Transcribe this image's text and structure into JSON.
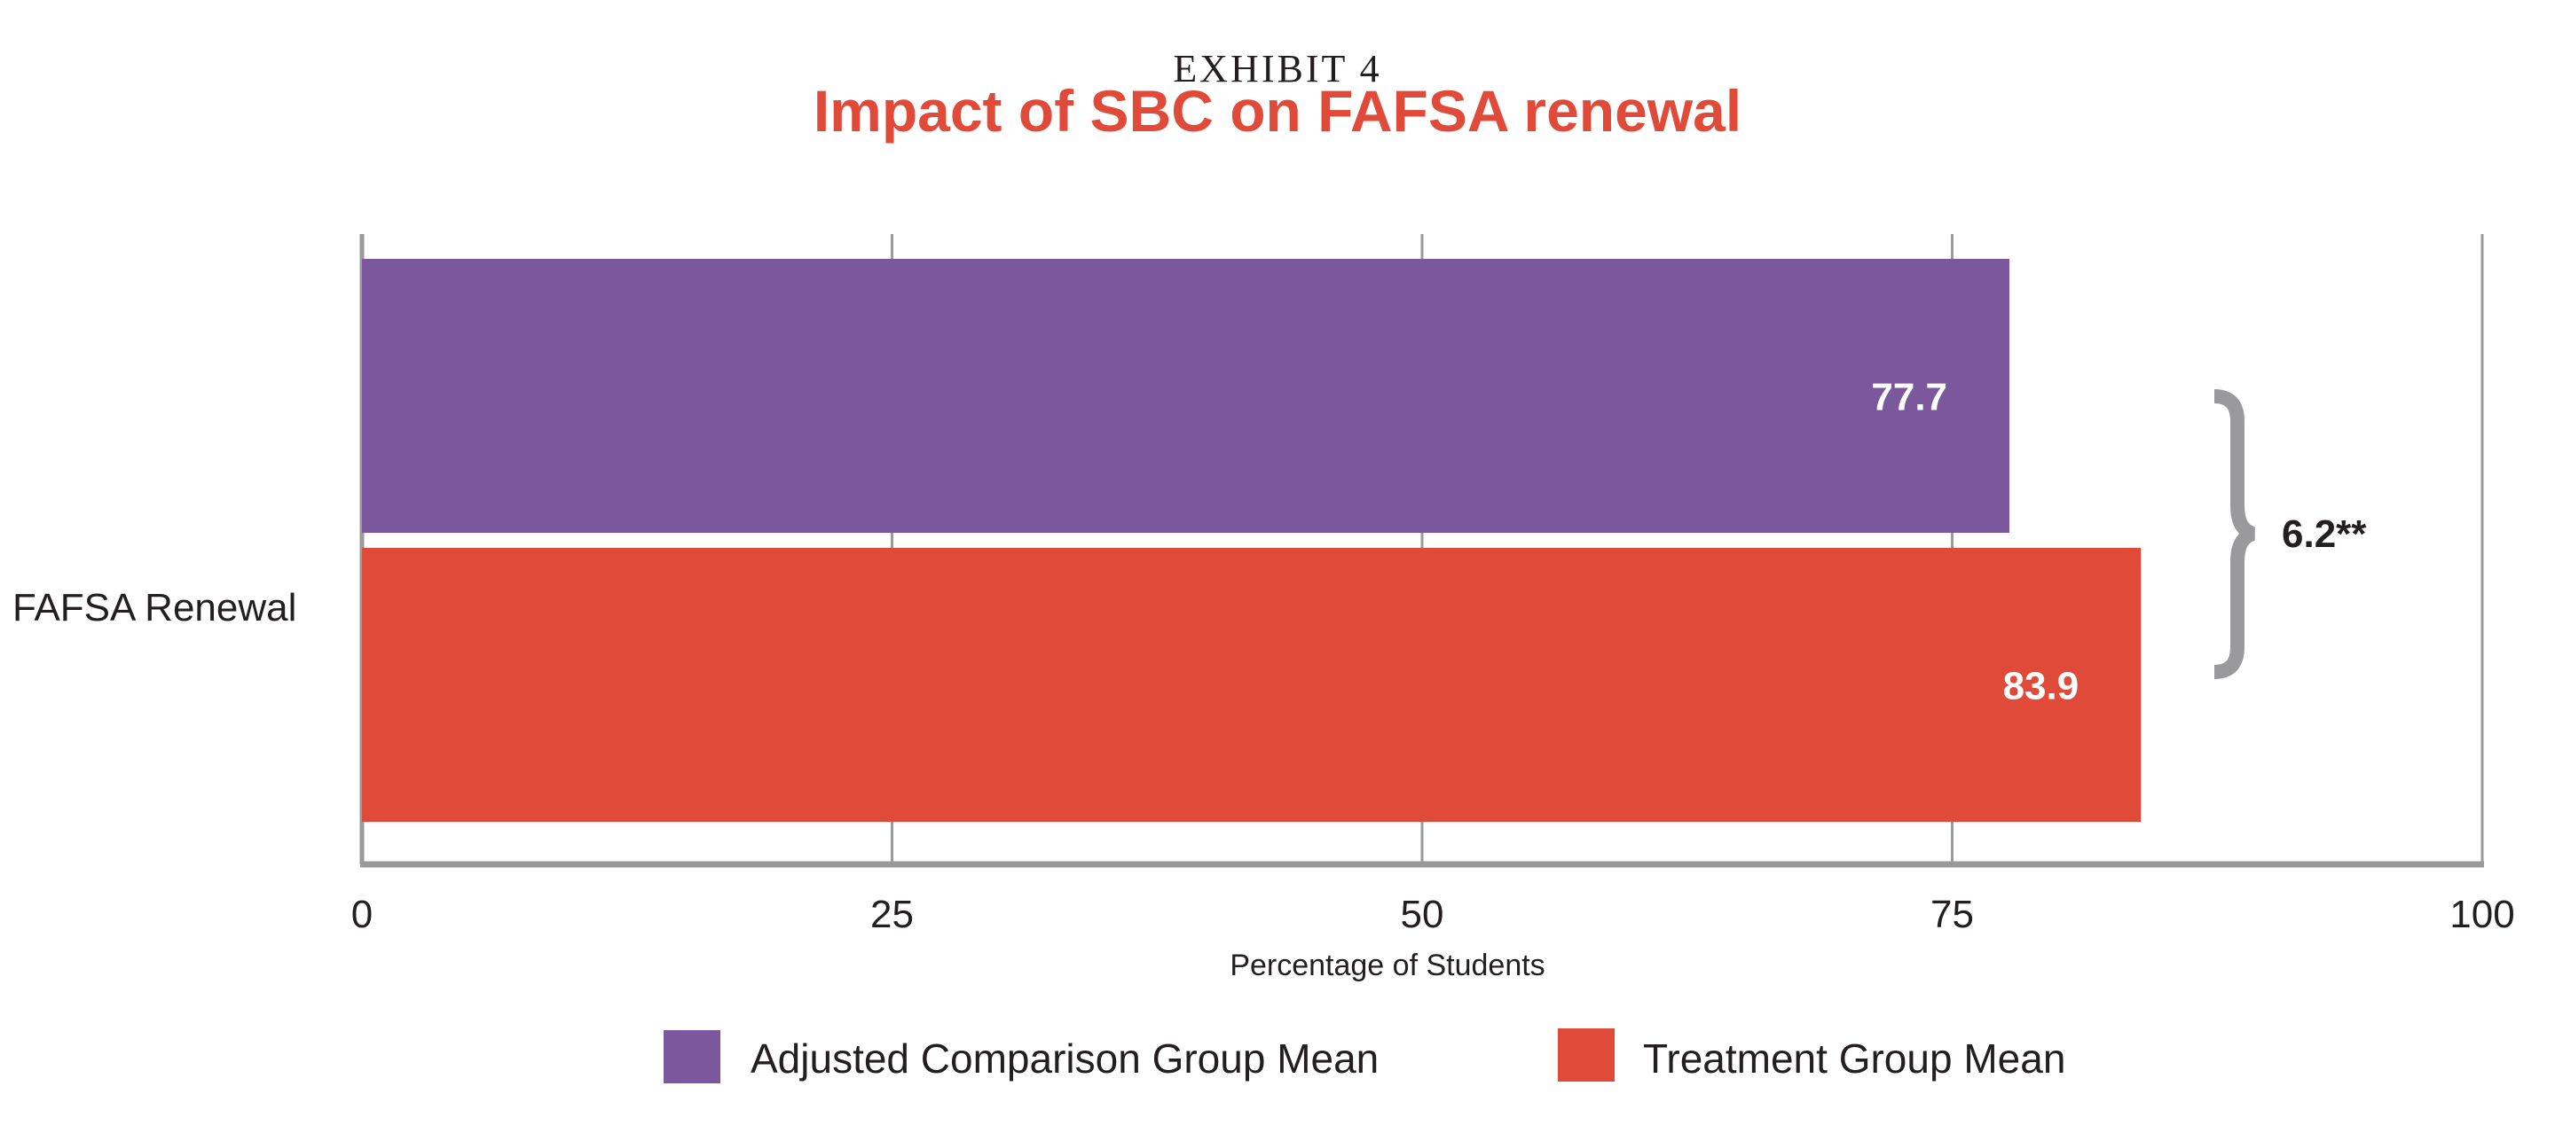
{
  "chart_data": {
    "type": "bar",
    "orientation": "horizontal",
    "supertitle": "EXHIBIT 4",
    "title": "Impact of SBC on FAFSA renewal",
    "categories": [
      "FAFSA Renewal"
    ],
    "series": [
      {
        "name": "Adjusted Comparison Group Mean",
        "values": [
          77.7
        ],
        "color": "#7b589d",
        "labels": [
          "77.7"
        ]
      },
      {
        "name": "Treatment Group Mean",
        "values": [
          83.9
        ],
        "color": "#e04a39",
        "labels": [
          "83.9"
        ]
      }
    ],
    "difference_annotation": "6.2**",
    "xlabel": "Percentage of Students",
    "ylabel": "",
    "xlim": [
      0,
      100
    ],
    "xticks": [
      "0",
      "25",
      "50",
      "75",
      "100"
    ],
    "xtick_values": [
      0,
      25,
      50,
      75,
      100
    ],
    "grid": true,
    "legend_position": "bottom",
    "title_color": "#e04a39",
    "axis_color": "#9a9a9c"
  }
}
